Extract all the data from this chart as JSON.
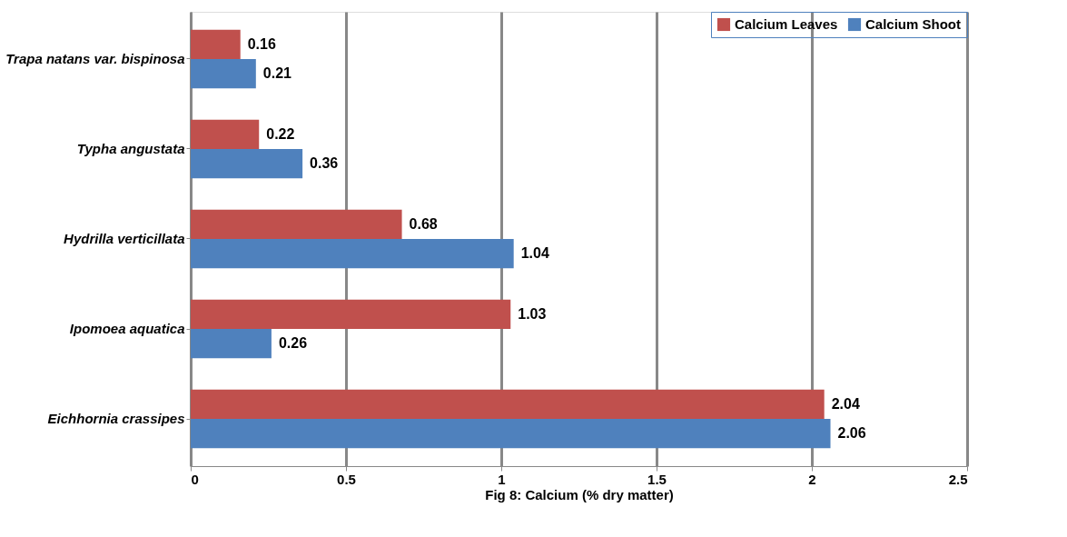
{
  "chart_data": {
    "type": "bar",
    "orientation": "horizontal",
    "xlabel": "Fig 8: Calcium (% dry matter)",
    "categories": [
      "Trapa natans var. bispinosa",
      "Typha angustata",
      "Hydrilla verticillata",
      "Ipomoea aquatica",
      "Eichhornia crassipes"
    ],
    "series": [
      {
        "name": "Calcium Leaves",
        "color": "#c0504d",
        "values": [
          0.16,
          0.22,
          0.68,
          1.03,
          2.04
        ]
      },
      {
        "name": "Calcium Shoot",
        "color": "#4f81bd",
        "values": [
          0.21,
          0.36,
          1.04,
          0.26,
          2.06
        ]
      }
    ],
    "xlim": [
      0,
      2.5
    ],
    "xticks": [
      0,
      0.5,
      1,
      1.5,
      2,
      2.5
    ],
    "grid": "x",
    "legend": "top right",
    "data_labels": true
  }
}
